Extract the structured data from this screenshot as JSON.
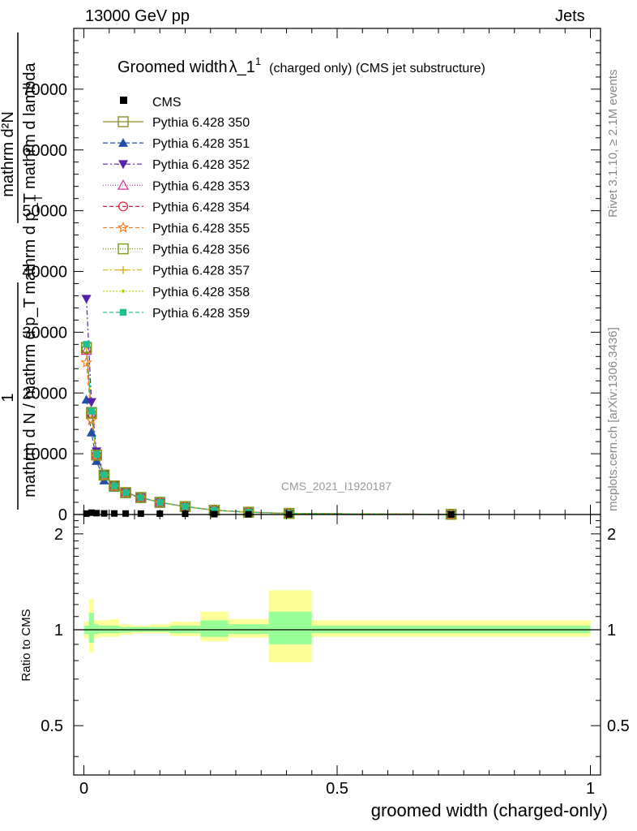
{
  "header": {
    "left": "13000 GeV pp",
    "right": "Jets"
  },
  "side_labels": {
    "rivet": "Rivet 3.1.10, ≥ 2.1M events",
    "mcplots": "mcplots.cern.ch [arXiv:1306.3436]"
  },
  "chart_data": {
    "type": "scatter",
    "title": "Groomed width",
    "title_symbol": "λ_1",
    "title_superscript": "1",
    "title_suffix": "(charged only) (CMS jet substructure)",
    "analysis_label": "CMS_2021_I1920187",
    "xlabel": "groomed width (charged-only)",
    "ylabel_main": {
      "numerator": "mathrm d²N",
      "fraction_numerator": "1",
      "denominator": "mathrm d N / mathrm d p_T",
      "inner_denominator": "mathrm d p_T mathrm d lambda",
      "inner_sub": "T"
    },
    "ylabel_ratio": "Ratio to CMS",
    "xlim": [
      -0.02,
      1.02
    ],
    "ylim_main": [
      0,
      80000
    ],
    "ylim_ratio": [
      0.35,
      2.3
    ],
    "xticks": [
      "0",
      "0.5",
      "1"
    ],
    "xtick_values": [
      0,
      0.5,
      1
    ],
    "yticks_main": [
      "0",
      "10000",
      "20000",
      "30000",
      "40000",
      "50000",
      "60000",
      "70000"
    ],
    "ytick_values_main": [
      0,
      10000,
      20000,
      30000,
      40000,
      50000,
      60000,
      70000
    ],
    "yticks_ratio": [
      "0.5",
      "1",
      "2"
    ],
    "ytick_values_ratio": [
      0.5,
      1,
      2
    ],
    "x": [
      0.005,
      0.015,
      0.025,
      0.04,
      0.06,
      0.0825,
      0.1125,
      0.15,
      0.2,
      0.2575,
      0.325,
      0.405,
      0.725
    ],
    "bin_edges": [
      0,
      0.01,
      0.02,
      0.03,
      0.05,
      0.07,
      0.095,
      0.13,
      0.17,
      0.23,
      0.285,
      0.365,
      0.45,
      1.0
    ],
    "cms_values": [
      150,
      300,
      220,
      180,
      170,
      160,
      150,
      140,
      120,
      60,
      40,
      25,
      10
    ],
    "ratio_band_green": [
      [
        0.97,
        1.03
      ],
      [
        0.91,
        1.13
      ],
      [
        0.97,
        1.04
      ],
      [
        0.975,
        1.03
      ],
      [
        0.975,
        1.03
      ],
      [
        0.98,
        1.02
      ],
      [
        0.985,
        1.02
      ],
      [
        0.985,
        1.02
      ],
      [
        0.975,
        1.03
      ],
      [
        0.95,
        1.07
      ],
      [
        0.97,
        1.04
      ],
      [
        0.9,
        1.14
      ],
      [
        0.975,
        1.03
      ]
    ],
    "ratio_band_yellow": [
      [
        0.94,
        1.06
      ],
      [
        0.85,
        1.25
      ],
      [
        0.94,
        1.07
      ],
      [
        0.95,
        1.07
      ],
      [
        0.95,
        1.08
      ],
      [
        0.965,
        1.04
      ],
      [
        0.975,
        1.03
      ],
      [
        0.975,
        1.04
      ],
      [
        0.955,
        1.06
      ],
      [
        0.92,
        1.14
      ],
      [
        0.945,
        1.08
      ],
      [
        0.79,
        1.33
      ],
      [
        0.95,
        1.07
      ]
    ],
    "series": [
      {
        "name": "Pythia 6.428 350",
        "color": "#8c8c2a",
        "marker": "square-open",
        "dash": "",
        "values": [
          27500,
          16800,
          9800,
          6500,
          4700,
          3600,
          2800,
          2000,
          1300,
          700,
          380,
          180,
          30
        ]
      },
      {
        "name": "Pythia 6.428 351",
        "color": "#1f4fa8",
        "marker": "triangle-up",
        "dash": "6,3",
        "values": [
          18900,
          13500,
          8800,
          5600,
          4400,
          3450,
          2750,
          2000,
          1320,
          720,
          390,
          180,
          30
        ]
      },
      {
        "name": "Pythia 6.428 352",
        "color": "#5522aa",
        "marker": "triangle-down",
        "dash": "6,3,2,3",
        "values": [
          35500,
          18500,
          10400,
          6600,
          4800,
          3650,
          2820,
          2000,
          1300,
          700,
          380,
          175,
          30
        ]
      },
      {
        "name": "Pythia 6.428 353",
        "color": "#cc3399",
        "marker": "triangle-up-open",
        "dash": "1,2",
        "values": [
          27000,
          16500,
          9700,
          6400,
          4650,
          3580,
          2790,
          1990,
          1290,
          700,
          385,
          178,
          30
        ]
      },
      {
        "name": "Pythia 6.428 354",
        "color": "#dd2233",
        "marker": "circle-open",
        "dash": "5,3",
        "values": [
          27200,
          16600,
          9750,
          6450,
          4680,
          3590,
          2800,
          2000,
          1300,
          700,
          382,
          178,
          30
        ]
      },
      {
        "name": "Pythia 6.428 355",
        "color": "#ff7a1a",
        "marker": "star-open",
        "dash": "5,3",
        "values": [
          25000,
          15500,
          9500,
          6300,
          4600,
          3550,
          2780,
          1990,
          1295,
          705,
          384,
          179,
          30
        ]
      },
      {
        "name": "Pythia 6.428 356",
        "color": "#7a9a1a",
        "marker": "square-open",
        "dash": "1,2",
        "values": [
          27400,
          16700,
          9780,
          6480,
          4690,
          3595,
          2798,
          1998,
          1298,
          701,
          381,
          177,
          30
        ]
      },
      {
        "name": "Pythia 6.428 357",
        "color": "#d4b000",
        "marker": "plus",
        "dash": "6,3,2,3",
        "values": [
          27600,
          16900,
          9820,
          6510,
          4710,
          3605,
          2805,
          2002,
          1302,
          702,
          380,
          176,
          30
        ]
      },
      {
        "name": "Pythia 6.428 358",
        "color": "#b8d400",
        "marker": "dot",
        "dash": "2,2",
        "values": [
          27550,
          16850,
          9810,
          6505,
          4705,
          3602,
          2802,
          2001,
          1301,
          701,
          380,
          176,
          30
        ]
      },
      {
        "name": "Pythia 6.428 359",
        "color": "#1fbf8f",
        "marker": "square",
        "dash": "5,3",
        "values": [
          28000,
          17000,
          9900,
          6550,
          4720,
          3610,
          2810,
          2003,
          1303,
          702,
          381,
          177,
          30
        ]
      }
    ],
    "legend_data_label": "CMS",
    "legend_placement": "top-left"
  }
}
